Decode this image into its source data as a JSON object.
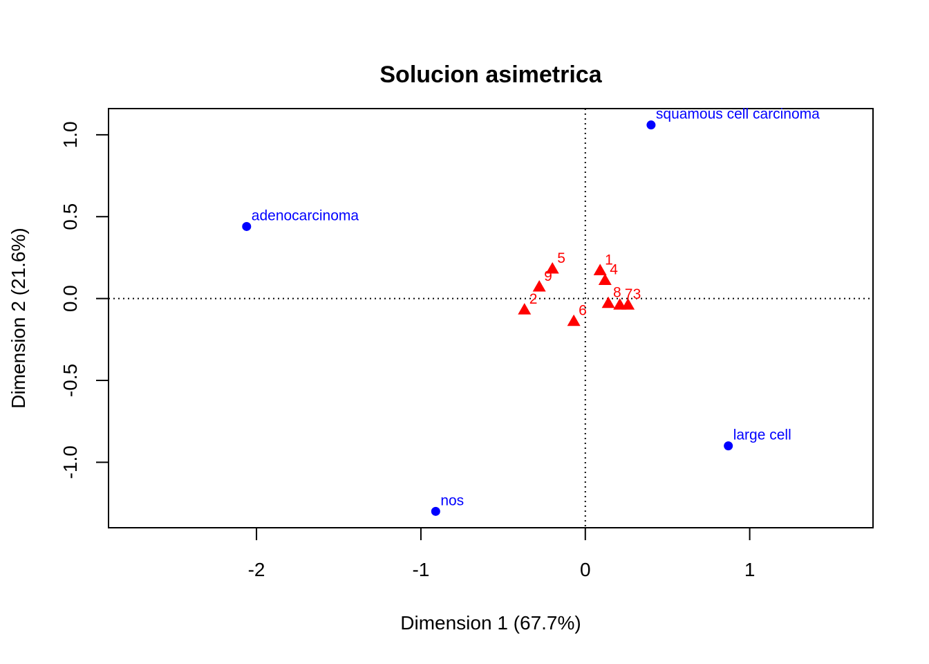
{
  "chart_data": {
    "type": "scatter",
    "title": "Solucion asimetrica",
    "xlabel": "Dimension 1 (67.7%)",
    "ylabel": "Dimension 2 (21.6%)",
    "xlim": [
      -2.9,
      1.75
    ],
    "ylim": [
      -1.4,
      1.16
    ],
    "x_ticks": [
      -2,
      -1,
      0,
      1
    ],
    "x_tick_labels": [
      "-2",
      "-1",
      "0",
      "1"
    ],
    "y_ticks": [
      -1.0,
      -0.5,
      0.0,
      0.5,
      1.0
    ],
    "y_tick_labels": [
      "-1.0",
      "-0.5",
      "0.0",
      "0.5",
      "1.0"
    ],
    "grid": false,
    "reference_lines": {
      "x": 0,
      "y": 0,
      "style": "dotted"
    },
    "colors": {
      "columns": "#0000ff",
      "rows": "#ff0000"
    },
    "series": [
      {
        "marker": "circle",
        "color": "#0000ff",
        "points": [
          {
            "label": "squamous cell carcinoma",
            "x": 0.4,
            "y": 1.06
          },
          {
            "label": "adenocarcinoma",
            "x": -2.06,
            "y": 0.44
          },
          {
            "label": "large cell",
            "x": 0.87,
            "y": -0.9
          },
          {
            "label": "nos",
            "x": -0.91,
            "y": -1.3
          }
        ]
      },
      {
        "marker": "triangle",
        "color": "#ff0000",
        "points": [
          {
            "label": "1",
            "x": 0.09,
            "y": 0.17
          },
          {
            "label": "4",
            "x": 0.12,
            "y": 0.11
          },
          {
            "label": "5",
            "x": -0.2,
            "y": 0.18
          },
          {
            "label": "9",
            "x": -0.28,
            "y": 0.07
          },
          {
            "label": "2",
            "x": -0.37,
            "y": -0.07
          },
          {
            "label": "6",
            "x": -0.07,
            "y": -0.14
          },
          {
            "label": "8",
            "x": 0.14,
            "y": -0.03
          },
          {
            "label": "7",
            "x": 0.21,
            "y": -0.04
          },
          {
            "label": "3",
            "x": 0.26,
            "y": -0.04
          }
        ]
      }
    ]
  }
}
